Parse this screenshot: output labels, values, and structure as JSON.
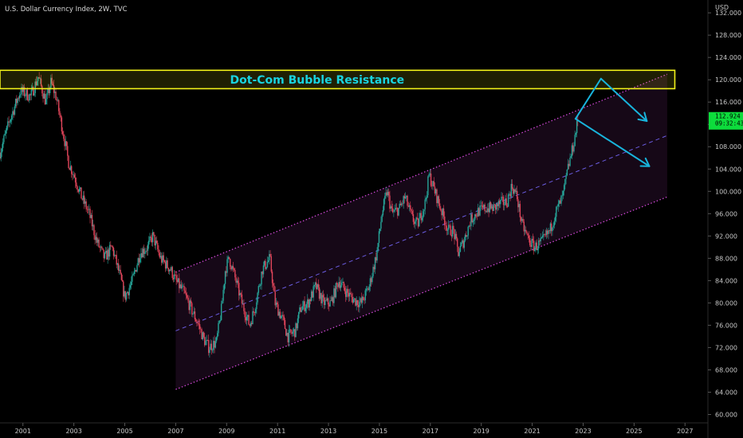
{
  "header": {
    "title": "U.S. Dollar Currency Index, 2W, TVC",
    "currency": "USD"
  },
  "price_tag": {
    "price": "112.924",
    "countdown": "09:32:43"
  },
  "colors": {
    "background": "#000000",
    "up": "#26a69a",
    "down": "#e0455a",
    "resistance": "#f2f21a",
    "channel": "#d94adf",
    "midline": "#6a5ce0",
    "arrow": "#18b4dc",
    "price_tag": "#0ddc3c",
    "annotation": "#19d3e0"
  },
  "chart_data": {
    "type": "candlestick",
    "title": "U.S. Dollar Currency Index, 2W, TVC",
    "xlabel": "",
    "ylabel": "",
    "xlim": [
      2000.1,
      2027.9
    ],
    "ylim": [
      58.5,
      134.3
    ],
    "grid": false,
    "x_ticks": [
      "2001",
      "2003",
      "2005",
      "2007",
      "2009",
      "2011",
      "2013",
      "2015",
      "2017",
      "2019",
      "2021",
      "2023",
      "2025",
      "2027"
    ],
    "x_tick_values": [
      2001,
      2003,
      2005,
      2007,
      2009,
      2011,
      2013,
      2015,
      2017,
      2019,
      2021,
      2023,
      2025,
      2027
    ],
    "y_ticks": [
      "60.000",
      "64.000",
      "68.000",
      "72.000",
      "76.000",
      "80.000",
      "84.000",
      "88.000",
      "92.000",
      "96.000",
      "100.000",
      "104.000",
      "108.000",
      "112.000",
      "116.000",
      "120.000",
      "124.000",
      "128.000",
      "132.000"
    ],
    "y_tick_values": [
      60,
      64,
      68,
      72,
      76,
      80,
      84,
      88,
      92,
      96,
      100,
      104,
      108,
      112,
      116,
      120,
      124,
      128,
      132
    ],
    "price_path": [
      [
        2000.1,
        107
      ],
      [
        2000.5,
        113
      ],
      [
        2000.9,
        118
      ],
      [
        2001.3,
        117
      ],
      [
        2001.6,
        120.5
      ],
      [
        2001.9,
        116
      ],
      [
        2002.1,
        119.5
      ],
      [
        2002.3,
        117
      ],
      [
        2002.6,
        110
      ],
      [
        2002.8,
        105
      ],
      [
        2003.0,
        103
      ],
      [
        2003.3,
        99
      ],
      [
        2003.6,
        96
      ],
      [
        2003.9,
        91
      ],
      [
        2004.2,
        88
      ],
      [
        2004.5,
        90
      ],
      [
        2004.8,
        85
      ],
      [
        2005.0,
        81
      ],
      [
        2005.3,
        84
      ],
      [
        2005.6,
        89
      ],
      [
        2005.9,
        90
      ],
      [
        2006.1,
        92
      ],
      [
        2006.4,
        88
      ],
      [
        2006.8,
        86
      ],
      [
        2007.0,
        84
      ],
      [
        2007.3,
        82
      ],
      [
        2007.6,
        79
      ],
      [
        2007.9,
        76
      ],
      [
        2008.1,
        73.5
      ],
      [
        2008.3,
        72
      ],
      [
        2008.6,
        73
      ],
      [
        2008.8,
        79
      ],
      [
        2008.95,
        86
      ],
      [
        2009.1,
        88
      ],
      [
        2009.3,
        85
      ],
      [
        2009.6,
        80
      ],
      [
        2009.9,
        76
      ],
      [
        2010.1,
        79
      ],
      [
        2010.4,
        86
      ],
      [
        2010.7,
        88
      ],
      [
        2010.9,
        80
      ],
      [
        2011.2,
        77
      ],
      [
        2011.4,
        74
      ],
      [
        2011.7,
        75
      ],
      [
        2011.9,
        79
      ],
      [
        2012.2,
        80
      ],
      [
        2012.5,
        83
      ],
      [
        2012.8,
        80
      ],
      [
        2013.1,
        80
      ],
      [
        2013.4,
        84
      ],
      [
        2013.7,
        82
      ],
      [
        2014.0,
        80.5
      ],
      [
        2014.3,
        80
      ],
      [
        2014.6,
        83
      ],
      [
        2014.9,
        89
      ],
      [
        2015.1,
        96
      ],
      [
        2015.3,
        100
      ],
      [
        2015.5,
        96
      ],
      [
        2015.8,
        97
      ],
      [
        2016.0,
        99
      ],
      [
        2016.3,
        95
      ],
      [
        2016.5,
        94
      ],
      [
        2016.8,
        98
      ],
      [
        2016.95,
        103
      ],
      [
        2017.1,
        101
      ],
      [
        2017.4,
        97
      ],
      [
        2017.7,
        93
      ],
      [
        2017.9,
        93
      ],
      [
        2018.1,
        89
      ],
      [
        2018.3,
        91
      ],
      [
        2018.6,
        95
      ],
      [
        2018.9,
        96.5
      ],
      [
        2019.2,
        97
      ],
      [
        2019.5,
        97
      ],
      [
        2019.8,
        98
      ],
      [
        2020.0,
        98
      ],
      [
        2020.2,
        101
      ],
      [
        2020.4,
        99
      ],
      [
        2020.6,
        94
      ],
      [
        2020.9,
        91
      ],
      [
        2021.1,
        90
      ],
      [
        2021.4,
        91
      ],
      [
        2021.7,
        93
      ],
      [
        2021.9,
        96
      ],
      [
        2022.2,
        99
      ],
      [
        2022.4,
        104
      ],
      [
        2022.6,
        108
      ],
      [
        2022.8,
        112.9
      ]
    ],
    "channel": {
      "start_year": 2007.0,
      "end_year": 2026.3,
      "upper": [
        85.5,
        121
      ],
      "middle": [
        75,
        110
      ],
      "lower": [
        64.5,
        99
      ]
    },
    "zone": {
      "label": "Dot-Com Bubble Resistance",
      "x_range": [
        2000.1,
        2026.6
      ],
      "y_range": [
        118.4,
        121.7
      ]
    },
    "arrows": [
      {
        "from": [
          2022.7,
          113
        ],
        "to": [
          2023.7,
          120.2
        ]
      },
      {
        "from": [
          2023.7,
          120.2
        ],
        "to": [
          2025.5,
          112.6
        ]
      },
      {
        "from": [
          2022.7,
          113
        ],
        "to": [
          2025.6,
          104.5
        ]
      }
    ],
    "current_price": 112.924
  }
}
